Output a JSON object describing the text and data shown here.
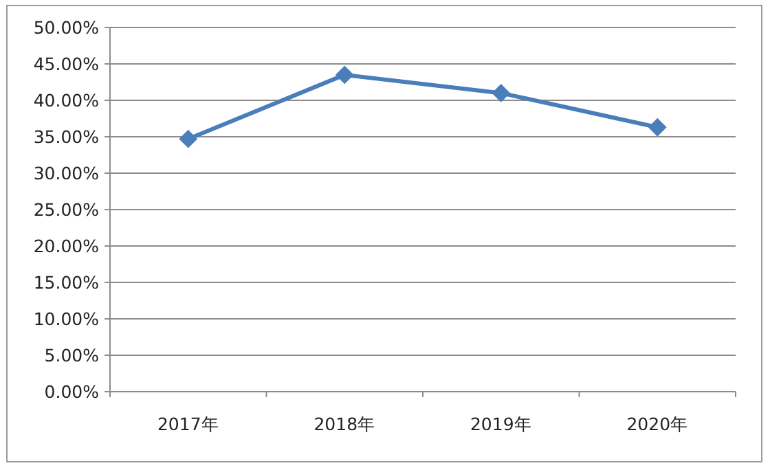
{
  "chart_data": {
    "type": "line",
    "categories": [
      "2017年",
      "2018年",
      "2019年",
      "2020年"
    ],
    "series": [
      {
        "color": "#4a7ebb",
        "values": [
          34.7,
          43.5,
          41.0,
          36.3
        ]
      }
    ],
    "ylim": [
      0,
      50
    ],
    "yticks": [
      {
        "value": 0,
        "label": "0.00%"
      },
      {
        "value": 5,
        "label": "5.00%"
      },
      {
        "value": 10,
        "label": "10.00%"
      },
      {
        "value": 15,
        "label": "15.00%"
      },
      {
        "value": 20,
        "label": "20.00%"
      },
      {
        "value": 25,
        "label": "25.00%"
      },
      {
        "value": 30,
        "label": "30.00%"
      },
      {
        "value": 35,
        "label": "35.00%"
      },
      {
        "value": 40,
        "label": "40.00%"
      },
      {
        "value": 45,
        "label": "45.00%"
      },
      {
        "value": 50,
        "label": "50.00%"
      }
    ],
    "grid": "y",
    "marker": "diamond",
    "line_style": "solid"
  }
}
